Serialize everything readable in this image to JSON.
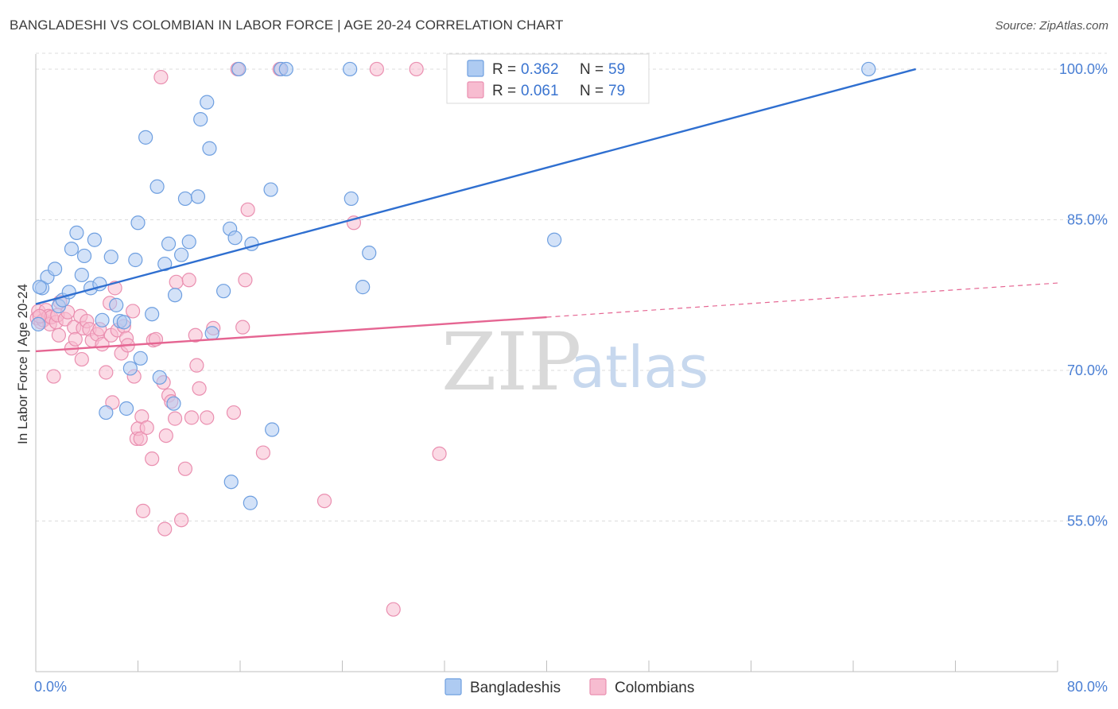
{
  "title": "BANGLADESHI VS COLOMBIAN IN LABOR FORCE | AGE 20-24 CORRELATION CHART",
  "source": "Source: ZipAtlas.com",
  "watermark": {
    "zip": "ZIP",
    "atlas": "atlas"
  },
  "colors": {
    "blue_fill": "#aecbf2",
    "blue_stroke": "#6e9fe0",
    "blue_line": "#2f6fd0",
    "pink_fill": "#f7bcd0",
    "pink_stroke": "#ea8fb0",
    "pink_line": "#e56592",
    "axis_text": "#4a7fd4",
    "grid": "#dcdcdc"
  },
  "legend": {
    "blue": {
      "r_label": "R =",
      "r_value": "0.362",
      "n_label": "N =",
      "n_value": "59"
    },
    "pink": {
      "r_label": "R =",
      "r_value": "0.061",
      "n_label": "N =",
      "n_value": "79"
    }
  },
  "bottom_legend": {
    "blue": "Bangladeshis",
    "pink": "Colombians"
  },
  "chart_data": {
    "type": "scatter",
    "title": "BANGLADESHI VS COLOMBIAN IN LABOR FORCE | AGE 20-24 CORRELATION CHART",
    "xlabel": "",
    "ylabel": "In Labor Force | Age 20-24",
    "xlim": [
      0,
      80
    ],
    "ylim": [
      40,
      101.5
    ],
    "x_tick_labels": [
      {
        "value": 0,
        "label": "0.0%"
      },
      {
        "value": 80,
        "label": "80.0%"
      }
    ],
    "x_minor_ticks": [
      0,
      8,
      16,
      24,
      32,
      40,
      48,
      56,
      64,
      72,
      80
    ],
    "y_ticks": [
      {
        "value": 100,
        "label": "100.0%"
      },
      {
        "value": 85,
        "label": "85.0%"
      },
      {
        "value": 70,
        "label": "70.0%"
      },
      {
        "value": 55,
        "label": "55.0%"
      }
    ],
    "series": [
      {
        "name": "Bangladeshis",
        "color": "blue",
        "points": [
          [
            0.2,
            74.6
          ],
          [
            0.5,
            78.2
          ],
          [
            0.9,
            79.3
          ],
          [
            1.5,
            80.1
          ],
          [
            1.8,
            76.4
          ],
          [
            2.1,
            77.0
          ],
          [
            2.6,
            77.8
          ],
          [
            2.8,
            82.1
          ],
          [
            3.2,
            83.7
          ],
          [
            3.6,
            79.5
          ],
          [
            3.8,
            81.4
          ],
          [
            4.3,
            78.2
          ],
          [
            4.6,
            83.0
          ],
          [
            5.0,
            78.6
          ],
          [
            5.2,
            75.0
          ],
          [
            5.5,
            65.8
          ],
          [
            5.9,
            81.3
          ],
          [
            6.3,
            76.5
          ],
          [
            6.6,
            74.9
          ],
          [
            6.9,
            74.8
          ],
          [
            7.1,
            66.2
          ],
          [
            7.4,
            70.2
          ],
          [
            7.8,
            81.0
          ],
          [
            8.0,
            84.7
          ],
          [
            8.2,
            71.2
          ],
          [
            8.6,
            93.2
          ],
          [
            9.1,
            75.6
          ],
          [
            9.5,
            88.3
          ],
          [
            9.7,
            69.3
          ],
          [
            10.1,
            80.6
          ],
          [
            10.4,
            82.6
          ],
          [
            10.8,
            66.7
          ],
          [
            10.9,
            77.5
          ],
          [
            11.4,
            81.5
          ],
          [
            11.7,
            87.1
          ],
          [
            12.0,
            82.8
          ],
          [
            12.7,
            87.3
          ],
          [
            12.9,
            95.0
          ],
          [
            13.4,
            96.7
          ],
          [
            13.6,
            92.1
          ],
          [
            13.8,
            73.7
          ],
          [
            14.7,
            77.9
          ],
          [
            15.2,
            84.1
          ],
          [
            15.3,
            58.9
          ],
          [
            15.6,
            83.2
          ],
          [
            15.9,
            100.0
          ],
          [
            16.9,
            82.6
          ],
          [
            16.8,
            56.8
          ],
          [
            18.5,
            64.1
          ],
          [
            18.4,
            88.0
          ],
          [
            19.2,
            100.0
          ],
          [
            19.6,
            100.0
          ],
          [
            24.6,
            100.0
          ],
          [
            24.7,
            87.1
          ],
          [
            25.6,
            78.3
          ],
          [
            26.1,
            81.7
          ],
          [
            40.6,
            83.0
          ],
          [
            65.2,
            100.0
          ],
          [
            0.3,
            78.3
          ]
        ],
        "trend_solid": {
          "x": [
            0,
            68.9
          ],
          "y": [
            76.6,
            100.0
          ]
        }
      },
      {
        "name": "Colombians",
        "color": "pink",
        "points": [
          [
            0.1,
            75.2
          ],
          [
            0.2,
            75.9
          ],
          [
            0.4,
            74.8
          ],
          [
            0.6,
            75.0
          ],
          [
            0.8,
            76.0
          ],
          [
            1.0,
            75.4
          ],
          [
            1.1,
            74.6
          ],
          [
            1.2,
            75.3
          ],
          [
            1.4,
            69.4
          ],
          [
            1.6,
            74.8
          ],
          [
            1.7,
            75.5
          ],
          [
            1.8,
            73.5
          ],
          [
            1.9,
            76.8
          ],
          [
            2.3,
            75.1
          ],
          [
            2.5,
            75.8
          ],
          [
            2.8,
            72.2
          ],
          [
            3.0,
            74.3
          ],
          [
            3.1,
            73.1
          ],
          [
            3.5,
            75.4
          ],
          [
            3.6,
            71.1
          ],
          [
            3.7,
            74.2
          ],
          [
            4.0,
            74.9
          ],
          [
            4.2,
            74.1
          ],
          [
            4.4,
            73.0
          ],
          [
            4.8,
            73.6
          ],
          [
            5.0,
            74.1
          ],
          [
            5.2,
            72.6
          ],
          [
            5.5,
            69.8
          ],
          [
            5.8,
            76.7
          ],
          [
            5.9,
            73.5
          ],
          [
            6.0,
            66.8
          ],
          [
            6.2,
            78.2
          ],
          [
            6.4,
            74.0
          ],
          [
            6.7,
            71.7
          ],
          [
            6.9,
            74.4
          ],
          [
            7.1,
            73.2
          ],
          [
            7.2,
            72.5
          ],
          [
            7.6,
            75.9
          ],
          [
            7.7,
            69.4
          ],
          [
            7.9,
            63.2
          ],
          [
            8.0,
            64.2
          ],
          [
            8.2,
            63.2
          ],
          [
            8.3,
            65.4
          ],
          [
            8.4,
            56.0
          ],
          [
            8.7,
            64.3
          ],
          [
            9.1,
            61.2
          ],
          [
            9.2,
            73.0
          ],
          [
            9.4,
            73.1
          ],
          [
            9.8,
            99.2
          ],
          [
            10.0,
            68.8
          ],
          [
            10.1,
            54.2
          ],
          [
            10.2,
            63.5
          ],
          [
            10.4,
            67.5
          ],
          [
            10.6,
            66.9
          ],
          [
            10.9,
            65.2
          ],
          [
            11.0,
            78.8
          ],
          [
            11.4,
            55.1
          ],
          [
            11.7,
            60.2
          ],
          [
            12.0,
            79.0
          ],
          [
            12.2,
            65.3
          ],
          [
            12.5,
            73.5
          ],
          [
            12.6,
            70.5
          ],
          [
            12.8,
            68.2
          ],
          [
            13.4,
            65.3
          ],
          [
            13.9,
            74.2
          ],
          [
            15.5,
            65.8
          ],
          [
            15.8,
            100.0
          ],
          [
            16.2,
            74.3
          ],
          [
            16.4,
            79.0
          ],
          [
            16.6,
            86.0
          ],
          [
            17.8,
            61.8
          ],
          [
            19.1,
            100.0
          ],
          [
            22.6,
            57.0
          ],
          [
            24.9,
            84.7
          ],
          [
            26.7,
            100.0
          ],
          [
            28.0,
            46.2
          ],
          [
            29.8,
            100.0
          ],
          [
            31.6,
            61.7
          ],
          [
            0.3,
            75.4
          ]
        ],
        "trend_solid": {
          "x": [
            0,
            40
          ],
          "y": [
            71.9,
            75.3
          ]
        },
        "trend_dashed": {
          "x": [
            40,
            80
          ],
          "y": [
            75.3,
            78.7
          ]
        }
      }
    ],
    "legend_position": "top-center"
  }
}
